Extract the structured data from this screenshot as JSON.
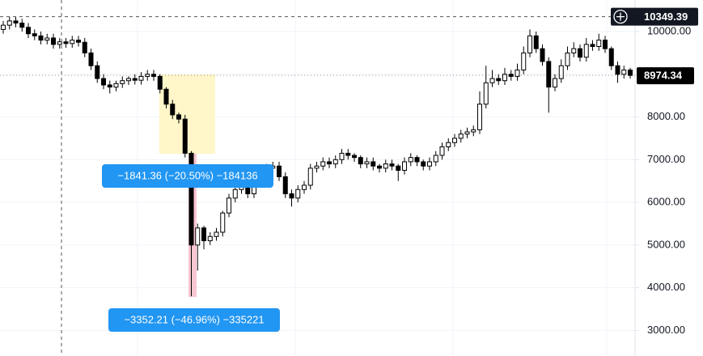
{
  "chart_data": {
    "type": "candlestick",
    "open": [
      10050,
      10150,
      10250,
      10200,
      10100,
      9950,
      9900,
      9800,
      9850,
      9700,
      9760,
      9720,
      9800,
      9750,
      9500,
      9200,
      8900,
      8750,
      8700,
      8780,
      8850,
      8900,
      8860,
      8950,
      9000,
      8950,
      8650,
      8300,
      8050,
      7950,
      7150,
      5000,
      5400,
      5100,
      5200,
      5300,
      5750,
      6100,
      6300,
      6450,
      6200,
      6500,
      6700,
      6800,
      6850,
      6600,
      6200,
      6100,
      6300,
      6400,
      6800,
      6850,
      6950,
      6900,
      7000,
      7150,
      7100,
      7050,
      6900,
      6950,
      6850,
      6800,
      6900,
      6850,
      6750,
      6950,
      7050,
      6950,
      6850,
      6950,
      7100,
      7300,
      7400,
      7500,
      7600,
      7650,
      7700,
      8300,
      8800,
      8900,
      8850,
      9000,
      8950,
      9100,
      9500,
      9900,
      9600,
      9300,
      8700,
      8900,
      9200,
      9500,
      9600,
      9400,
      9700,
      9650,
      9800,
      9600,
      9200,
      9000,
      9100
    ],
    "high": [
      10250,
      10350,
      10350,
      10300,
      10200,
      10050,
      10000,
      9950,
      9950,
      9850,
      9850,
      9900,
      9900,
      9850,
      9600,
      9300,
      9000,
      8850,
      8850,
      8950,
      8950,
      9000,
      9050,
      9100,
      9100,
      9000,
      8700,
      8400,
      8100,
      8050,
      7200,
      5500,
      5450,
      5300,
      5400,
      5800,
      6200,
      6400,
      6500,
      6550,
      6600,
      6800,
      6900,
      6950,
      6950,
      6700,
      6300,
      6400,
      6500,
      6900,
      6950,
      7050,
      7050,
      7100,
      7250,
      7250,
      7150,
      7100,
      7050,
      7050,
      6900,
      7000,
      7000,
      6900,
      7050,
      7150,
      7100,
      7000,
      7050,
      7200,
      7400,
      7500,
      7600,
      7700,
      7750,
      7800,
      8600,
      9200,
      9100,
      9000,
      9150,
      9100,
      9250,
      9650,
      10050,
      10000,
      9700,
      9400,
      9000,
      9350,
      9650,
      9750,
      9700,
      9850,
      9800,
      9950,
      9900,
      9650,
      9300,
      9200,
      9150
    ],
    "low": [
      9950,
      10050,
      10100,
      10000,
      9850,
      9800,
      9700,
      9700,
      9600,
      9600,
      9620,
      9620,
      9650,
      9400,
      9100,
      8800,
      8650,
      8550,
      8600,
      8680,
      8750,
      8760,
      8760,
      8850,
      8850,
      8550,
      8200,
      7950,
      7850,
      7050,
      3800,
      4400,
      4900,
      5000,
      5100,
      5200,
      5650,
      6000,
      6200,
      6100,
      6100,
      6400,
      6600,
      6700,
      6500,
      6100,
      5900,
      6000,
      6200,
      6300,
      6700,
      6750,
      6800,
      6800,
      6900,
      7000,
      6950,
      6800,
      6800,
      6750,
      6700,
      6700,
      6750,
      6500,
      6650,
      6850,
      6850,
      6750,
      6750,
      6850,
      7000,
      7200,
      7300,
      7400,
      7500,
      7550,
      7600,
      8200,
      8700,
      8750,
      8750,
      8850,
      8850,
      9000,
      9400,
      9500,
      9200,
      8100,
      8600,
      8800,
      9100,
      9400,
      9300,
      9300,
      9550,
      9550,
      9500,
      9100,
      8800,
      8900,
      8900
    ],
    "close": [
      10150,
      10250,
      10200,
      10100,
      9950,
      9900,
      9800,
      9850,
      9700,
      9760,
      9720,
      9800,
      9750,
      9500,
      9200,
      8900,
      8750,
      8700,
      8780,
      8850,
      8900,
      8860,
      8950,
      9000,
      8950,
      8650,
      8300,
      8050,
      7950,
      7150,
      5000,
      5400,
      5100,
      5200,
      5300,
      5750,
      6100,
      6300,
      6450,
      6200,
      6500,
      6700,
      6800,
      6850,
      6600,
      6200,
      6100,
      6300,
      6400,
      6800,
      6850,
      6950,
      6900,
      7000,
      7150,
      7100,
      7050,
      6900,
      6950,
      6850,
      6800,
      6900,
      6850,
      6750,
      6950,
      7050,
      6950,
      6850,
      6950,
      7100,
      7300,
      7400,
      7500,
      7600,
      7650,
      7700,
      8300,
      8800,
      8900,
      8850,
      9000,
      8950,
      9100,
      9500,
      9900,
      9600,
      9300,
      8700,
      8900,
      9200,
      9500,
      9600,
      9400,
      9700,
      9650,
      9800,
      9600,
      9200,
      9000,
      9100,
      8974.34
    ],
    "up_color": "#ffffff",
    "down_color": "#000000",
    "ylim": [
      2400,
      10740
    ],
    "yticks": [
      {
        "value": 3000,
        "label": "3000.00"
      },
      {
        "value": 4000,
        "label": "4000.00"
      },
      {
        "value": 5000,
        "label": "5000.00"
      },
      {
        "value": 6000,
        "label": "6000.00"
      },
      {
        "value": 7000,
        "label": "7000.00"
      },
      {
        "value": 8000,
        "label": "8000.00"
      },
      {
        "value": 9000,
        "label": "9000.00"
      },
      {
        "value": 10000,
        "label": "10000.00"
      }
    ],
    "grid": true,
    "crosshair_price": 10349.39,
    "last_price": 8974.34,
    "measurements": [
      "−1841.36 (−20.50%) −184136",
      "−3352.21 (−46.96%) −335221"
    ]
  }
}
